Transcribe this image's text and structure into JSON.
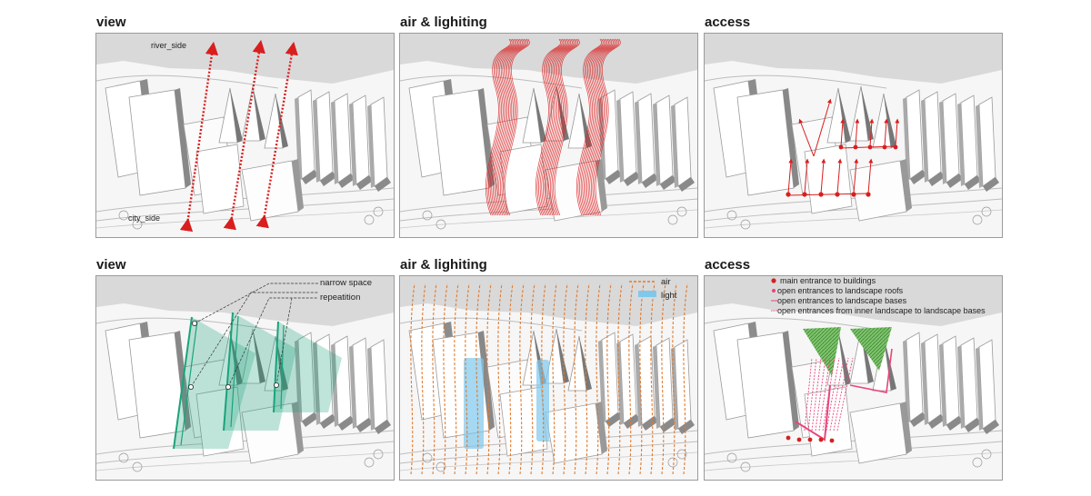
{
  "rows": [
    {
      "panels": [
        {
          "title": "view",
          "labels": [
            "river_side",
            "city_side"
          ]
        },
        {
          "title": "air & lighiting",
          "labels": []
        },
        {
          "title": "access",
          "labels": []
        }
      ]
    },
    {
      "panels": [
        {
          "title": "view",
          "labels": [
            "narrow space",
            "repeatition"
          ]
        },
        {
          "title": "air & lighiting",
          "legend": [
            "air",
            "light"
          ]
        },
        {
          "title": "access",
          "legend": [
            "main entrance to buildings",
            "open entrances to landscape roofs",
            "open entrances to landscape bases",
            "open entrances from inner landscape to landscape bases"
          ]
        }
      ]
    }
  ],
  "colors": {
    "red": "#d91e1e",
    "green": "#1aa37a",
    "orange": "#e07a2e",
    "light_blue": "#7fc8ec",
    "pink": "#e8467a",
    "hatch_green": "#3f9c3a"
  }
}
